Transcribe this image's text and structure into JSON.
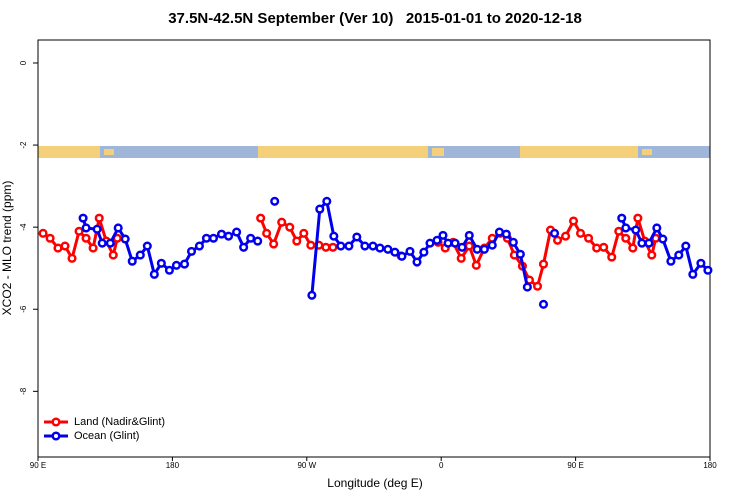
{
  "chart_data": {
    "type": "line",
    "title": "37.5N-42.5N September (Ver 10)   2015-01-01 to 2020-12-18",
    "x_label": "Longitude (deg E)",
    "y_label": "XCO2 - MLO trend (ppm)",
    "xlim": [
      90,
      540
    ],
    "xticks": [
      {
        "value": 90,
        "label": "90 E"
      },
      180,
      {
        "value": 270,
        "label": "90 W"
      },
      {
        "value": 360,
        "label": "0"
      },
      {
        "value": 450,
        "label": "90 E"
      },
      {
        "value": 540,
        "label": "180"
      }
    ],
    "ylim": [
      -9.6,
      0.56
    ],
    "yticks": [
      0,
      -2,
      -4,
      -6,
      -8
    ],
    "legend": "bottom-left",
    "series": [
      {
        "name": "Land (Nadir&Glint)",
        "color": "#ff0000",
        "x": [
          93.4,
          98.1,
          103.4,
          108.1,
          112.8,
          117.5,
          122.2,
          126.9,
          131,
          135.7,
          140.4,
          143.1,
          null,
          239.1,
          243.1,
          247.8,
          253.2,
          258.6,
          263.3,
          268.0,
          272.7,
          278.1,
          282.8,
          287.5,
          null,
          333.1,
          null,
          357.9,
          362.7,
          368.0,
          373.4,
          378.8,
          383.5,
          388.9,
          394.2,
          399.6,
          404.3,
          409.0,
          414.4,
          419.1,
          424.5,
          428.5,
          433.2,
          437.9,
          443.3,
          448.6,
          453.3,
          458.7,
          464.1,
          468.8,
          474.2,
          478.9,
          483.6,
          488.3,
          491.7,
          496.3,
          501.0,
          503.7
        ],
        "values": [
          -4.15,
          -4.27,
          -4.51,
          -4.46,
          -4.76,
          -4.1,
          -4.27,
          -4.51,
          -3.78,
          -4.34,
          -4.68,
          -4.27,
          null,
          -3.78,
          -4.15,
          -4.41,
          -3.88,
          -4.0,
          -4.34,
          -4.15,
          -4.44,
          -4.44,
          -4.49,
          -4.49,
          null,
          -4.7,
          null,
          -4.37,
          -4.51,
          -4.37,
          -4.76,
          -4.46,
          -4.93,
          -4.51,
          -4.27,
          -4.15,
          -4.27,
          -4.68,
          -4.95,
          -5.29,
          -5.44,
          -4.9,
          -4.07,
          -4.32,
          -4.22,
          -3.85,
          -4.15,
          -4.27,
          -4.51,
          -4.49,
          -4.73,
          -4.1,
          -4.27,
          -4.51,
          -3.78,
          -4.34,
          -4.68,
          -4.27
        ]
      },
      {
        "name": "Ocean (Glint)",
        "color": "#0000ee",
        "x": [
          120.2,
          122.2,
          129.6,
          133.0,
          138.4,
          143.7,
          148.4,
          153.1,
          158.5,
          163.2,
          167.9,
          172.6,
          178.0,
          182.7,
          188.1,
          192.8,
          198.1,
          202.8,
          207.5,
          212.9,
          217.6,
          223.0,
          227.7,
          232.4,
          237.1,
          null,
          248.5,
          null,
          273.4,
          278.7,
          283.4,
          288.1,
          292.8,
          298.2,
          303.5,
          308.9,
          314.3,
          319.0,
          324.3,
          329.0,
          333.7,
          339.1,
          343.8,
          348.4,
          352.5,
          357.2,
          361.2,
          364.6,
          369.3,
          374.0,
          378.8,
          384.1,
          388.9,
          394.2,
          399.0,
          403.6,
          408.3,
          413.0,
          417.7,
          null,
          428.5,
          null,
          435.9,
          null,
          480.9,
          483.6,
          490.3,
          494.4,
          499.1,
          504.4,
          508.4,
          513.8,
          519.1,
          523.8,
          528.5,
          533.9,
          538.6
        ],
        "values": [
          -3.78,
          -4.02,
          -4.05,
          -4.39,
          -4.39,
          -4.02,
          -4.29,
          -4.83,
          -4.68,
          -4.46,
          -5.15,
          -4.88,
          -5.05,
          -4.93,
          -4.9,
          -4.59,
          -4.46,
          -4.27,
          -4.27,
          -4.17,
          -4.22,
          -4.12,
          -4.49,
          -4.27,
          -4.34,
          null,
          -3.37,
          null,
          -5.66,
          -3.56,
          -3.37,
          -4.22,
          -4.46,
          -4.46,
          -4.24,
          -4.46,
          -4.46,
          -4.51,
          -4.54,
          -4.61,
          -4.71,
          -4.59,
          -4.85,
          -4.61,
          -4.39,
          -4.32,
          -4.2,
          -4.39,
          -4.39,
          -4.49,
          -4.2,
          -4.54,
          -4.54,
          -4.44,
          -4.12,
          -4.17,
          -4.37,
          -4.66,
          -5.46,
          null,
          -5.88,
          null,
          -4.15,
          null,
          -3.78,
          -4.02,
          -4.07,
          -4.39,
          -4.39,
          -4.02,
          -4.29,
          -4.83,
          -4.68,
          -4.46,
          -5.15,
          -4.88,
          -5.05
        ]
      }
    ]
  }
}
